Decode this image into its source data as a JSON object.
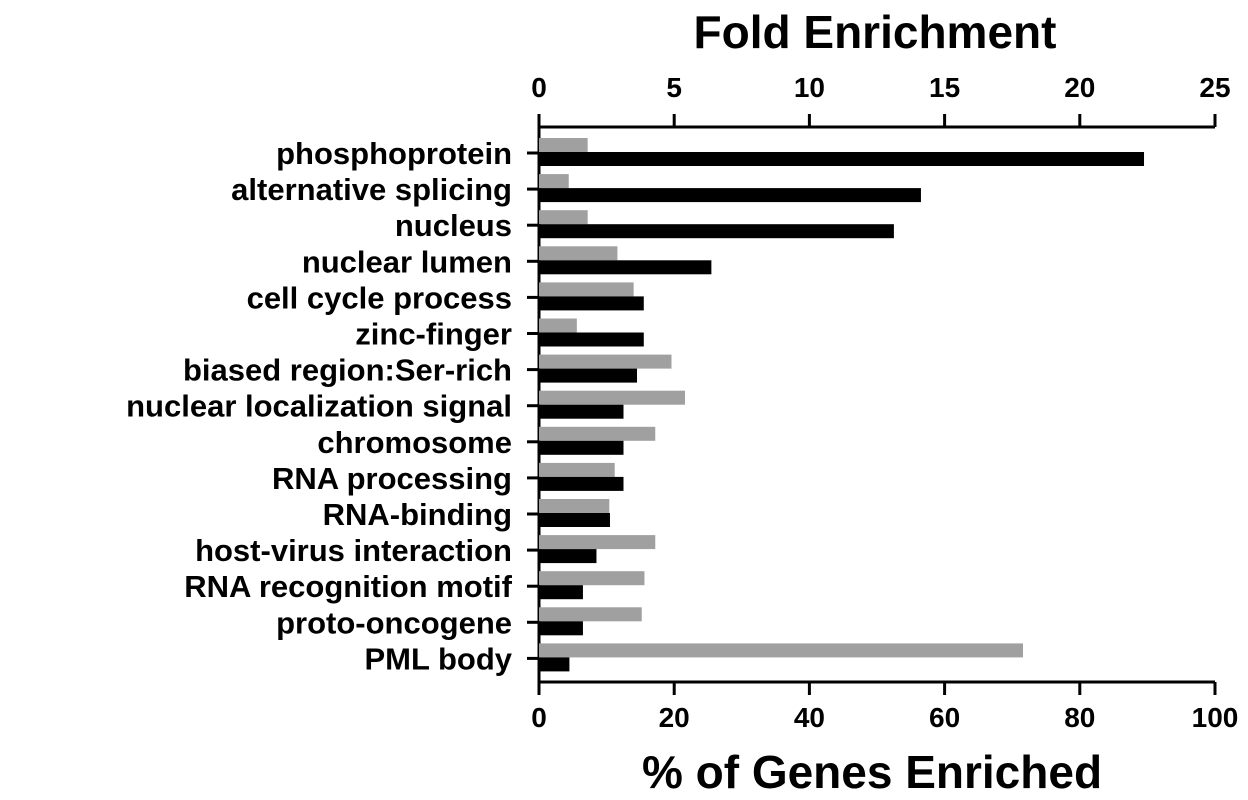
{
  "chart_data": {
    "type": "bar",
    "orientation": "horizontal",
    "top_axis": {
      "label": "Fold Enrichment",
      "range": [
        0,
        25
      ],
      "ticks": [
        "0",
        "5",
        "10",
        "15",
        "20",
        "25"
      ]
    },
    "bottom_axis": {
      "label": "% of Genes Enriched",
      "range": [
        0,
        100
      ],
      "ticks": [
        "0",
        "20",
        "40",
        "60",
        "80",
        "100"
      ]
    },
    "categories": [
      "phosphoprotein",
      "alternative splicing",
      "nucleus",
      "nuclear lumen",
      "cell cycle process",
      "zinc-finger",
      "biased region:Ser-rich",
      "nuclear localization signal",
      "chromosome",
      "RNA processing",
      "RNA-binding",
      "host-virus interaction",
      "RNA recognition motif",
      "proto-oncogene",
      "PML body"
    ],
    "series": [
      {
        "axis": "top",
        "color": "#a0a0a0",
        "values": [
          1.8,
          1.1,
          1.8,
          2.9,
          3.5,
          1.4,
          4.9,
          5.4,
          4.3,
          2.8,
          2.6,
          4.3,
          3.9,
          3.8,
          17.9
        ]
      },
      {
        "axis": "bottom",
        "color": "#000000",
        "values": [
          89.5,
          56.5,
          52.5,
          25.5,
          15.5,
          15.5,
          14.5,
          12.5,
          12.5,
          12.5,
          10.5,
          8.5,
          6.5,
          6.5,
          4.5
        ]
      }
    ],
    "grid": false,
    "legend": "none"
  }
}
